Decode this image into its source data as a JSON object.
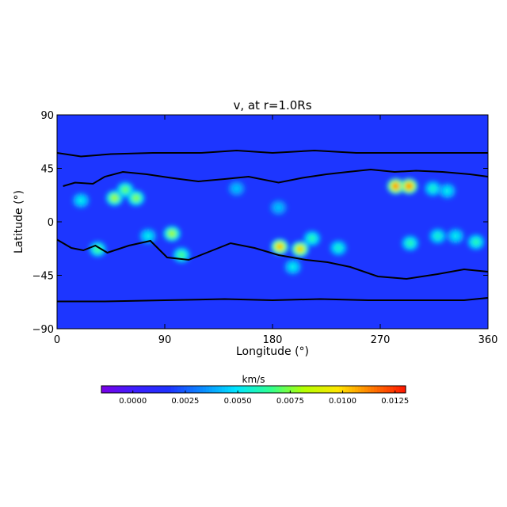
{
  "chart_data": {
    "type": "heatmap",
    "title": "v, at r=1.0Rs",
    "title_subscript": "r",
    "xlabel": "Longitude (°)",
    "ylabel": "Latitude (°)",
    "xlim": [
      0,
      360
    ],
    "ylim": [
      -90,
      90
    ],
    "x_ticks": [
      {
        "value": 0,
        "label": "0"
      },
      {
        "value": 90,
        "label": "90"
      },
      {
        "value": 180,
        "label": "180"
      },
      {
        "value": 270,
        "label": "270"
      },
      {
        "value": 360,
        "label": "360"
      }
    ],
    "y_ticks": [
      {
        "value": 90,
        "label": "90"
      },
      {
        "value": 45,
        "label": "45"
      },
      {
        "value": 0,
        "label": "0"
      },
      {
        "value": -45,
        "label": "−45"
      },
      {
        "value": -90,
        "label": "−90"
      }
    ],
    "background_value": 0.0018,
    "hotspots": [
      {
        "lon": 20,
        "lat": 18,
        "v": 0.0055
      },
      {
        "lon": 48,
        "lat": 20,
        "v": 0.0085
      },
      {
        "lon": 57,
        "lat": 27,
        "v": 0.0075
      },
      {
        "lon": 66,
        "lat": 20,
        "v": 0.008
      },
      {
        "lon": 34,
        "lat": -23,
        "v": 0.007
      },
      {
        "lon": 76,
        "lat": -12,
        "v": 0.0055
      },
      {
        "lon": 96,
        "lat": -10,
        "v": 0.0085
      },
      {
        "lon": 104,
        "lat": -28,
        "v": 0.007
      },
      {
        "lon": 186,
        "lat": -21,
        "v": 0.011
      },
      {
        "lon": 203,
        "lat": -23,
        "v": 0.0105
      },
      {
        "lon": 213,
        "lat": -14,
        "v": 0.0065
      },
      {
        "lon": 235,
        "lat": -22,
        "v": 0.006
      },
      {
        "lon": 197,
        "lat": -38,
        "v": 0.0055
      },
      {
        "lon": 283,
        "lat": 30,
        "v": 0.012
      },
      {
        "lon": 294,
        "lat": 30,
        "v": 0.012
      },
      {
        "lon": 314,
        "lat": 28,
        "v": 0.006
      },
      {
        "lon": 326,
        "lat": 26,
        "v": 0.0055
      },
      {
        "lon": 295,
        "lat": -18,
        "v": 0.0065
      },
      {
        "lon": 318,
        "lat": -12,
        "v": 0.006
      },
      {
        "lon": 333,
        "lat": -12,
        "v": 0.0055
      },
      {
        "lon": 350,
        "lat": -17,
        "v": 0.0065
      },
      {
        "lon": 150,
        "lat": 28,
        "v": 0.0045
      },
      {
        "lon": 185,
        "lat": 12,
        "v": 0.0045
      }
    ],
    "contours": [
      [
        [
          0,
          58
        ],
        [
          20,
          55
        ],
        [
          45,
          57
        ],
        [
          80,
          58
        ],
        [
          120,
          58
        ],
        [
          150,
          60
        ],
        [
          180,
          58
        ],
        [
          215,
          60
        ],
        [
          250,
          58
        ],
        [
          290,
          58
        ],
        [
          330,
          58
        ],
        [
          360,
          58
        ]
      ],
      [
        [
          0,
          -67
        ],
        [
          40,
          -67
        ],
        [
          90,
          -66
        ],
        [
          140,
          -65
        ],
        [
          180,
          -66
        ],
        [
          220,
          -65
        ],
        [
          260,
          -66
        ],
        [
          300,
          -66
        ],
        [
          340,
          -66
        ],
        [
          360,
          -64
        ]
      ],
      [
        [
          5,
          30
        ],
        [
          15,
          33
        ],
        [
          30,
          32
        ],
        [
          40,
          38
        ],
        [
          55,
          42
        ],
        [
          75,
          40
        ],
        [
          95,
          37
        ],
        [
          118,
          34
        ],
        [
          140,
          36
        ],
        [
          160,
          38
        ],
        [
          185,
          33
        ],
        [
          205,
          37
        ],
        [
          225,
          40
        ],
        [
          243,
          42
        ],
        [
          262,
          44
        ],
        [
          282,
          42
        ],
        [
          300,
          43
        ],
        [
          322,
          42
        ],
        [
          345,
          40
        ],
        [
          360,
          38
        ]
      ],
      [
        [
          0,
          -15
        ],
        [
          12,
          -22
        ],
        [
          22,
          -24
        ],
        [
          32,
          -20
        ],
        [
          42,
          -26
        ],
        [
          60,
          -20
        ],
        [
          78,
          -16
        ],
        [
          92,
          -30
        ],
        [
          110,
          -32
        ],
        [
          125,
          -26
        ],
        [
          145,
          -18
        ],
        [
          165,
          -22
        ],
        [
          185,
          -28
        ],
        [
          208,
          -32
        ],
        [
          226,
          -34
        ],
        [
          245,
          -38
        ],
        [
          268,
          -46
        ],
        [
          292,
          -48
        ],
        [
          318,
          -44
        ],
        [
          340,
          -40
        ],
        [
          360,
          -42
        ]
      ]
    ],
    "contour_levels": [
      "closed lines (black)"
    ]
  },
  "colorbar": {
    "label": "km/s",
    "min": -0.0015,
    "max": 0.013,
    "ticks": [
      {
        "value": 0.0,
        "label": "0.0000"
      },
      {
        "value": 0.0025,
        "label": "0.0025"
      },
      {
        "value": 0.005,
        "label": "0.0050"
      },
      {
        "value": 0.0075,
        "label": "0.0075"
      },
      {
        "value": 0.01,
        "label": "0.0100"
      },
      {
        "value": 0.0125,
        "label": "0.0125"
      }
    ]
  },
  "colors": {
    "background": "#ffffff",
    "axis": "#000000",
    "contour": "#000000",
    "colormap": [
      "#7a00e6",
      "#3c1fff",
      "#1e32ff",
      "#0a8cff",
      "#00e6ff",
      "#30ff90",
      "#b4ff00",
      "#ffe600",
      "#ff7a00",
      "#ff1400"
    ]
  }
}
